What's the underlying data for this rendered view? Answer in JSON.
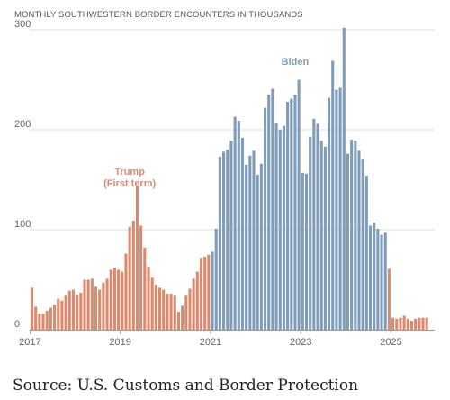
{
  "colors": {
    "trump": "#dc8a6e",
    "biden": "#7f9db8",
    "grid": "#dcdcdc",
    "axis": "#9a9a9a",
    "tick_text": "#666666"
  },
  "chart_data": {
    "type": "bar",
    "title": "MONTHLY SOUTHWESTERN BORDER ENCOUNTERS IN THOUSANDS",
    "xlabel": "",
    "ylabel": "",
    "ylim": [
      0,
      300
    ],
    "yticks": [
      0,
      100,
      200,
      300
    ],
    "xticks": [
      {
        "label": "2017",
        "index": 0
      },
      {
        "label": "2019",
        "index": 24
      },
      {
        "label": "2021",
        "index": 48
      },
      {
        "label": "2023",
        "index": 72
      },
      {
        "label": "2025",
        "index": 96
      }
    ],
    "grid": true,
    "start": "2017-01",
    "series": [
      {
        "name": "Trump (First term)",
        "color": "trump",
        "start_index": 0,
        "values": [
          42,
          23,
          16,
          16,
          19,
          22,
          25,
          31,
          29,
          34,
          39,
          40,
          35,
          37,
          50,
          50,
          51,
          43,
          40,
          47,
          51,
          60,
          62,
          60,
          58,
          76,
          103,
          109,
          144,
          104,
          82,
          63,
          52,
          45,
          42,
          40,
          36,
          36,
          34,
          18,
          24,
          34,
          41,
          51,
          58,
          72,
          73,
          75
        ]
      },
      {
        "name": "Biden",
        "color": "biden",
        "start_index": 48,
        "values": [
          78,
          101,
          173,
          178,
          180,
          189,
          213,
          209,
          192,
          165,
          174,
          179,
          155,
          166,
          222,
          235,
          241,
          207,
          200,
          204,
          228,
          231,
          235,
          250,
          157,
          156,
          193,
          211,
          206,
          189,
          183,
          232,
          269,
          240,
          242,
          302,
          176,
          190,
          189,
          179,
          171,
          154,
          104,
          107,
          101,
          95,
          97
        ]
      },
      {
        "name": "",
        "color": "trump",
        "start_index": 95,
        "values": [
          61,
          12,
          11,
          12,
          14,
          11,
          9,
          11,
          12,
          12,
          12
        ]
      }
    ],
    "annotations": [
      {
        "text": [
          "Trump",
          "(First term)"
        ],
        "color": "trump",
        "index": 26,
        "y": 155
      },
      {
        "text": [
          "Biden"
        ],
        "color": "biden",
        "index": 70,
        "y": 265
      }
    ]
  },
  "source": "Source: U.S. Customs and Border Protection"
}
